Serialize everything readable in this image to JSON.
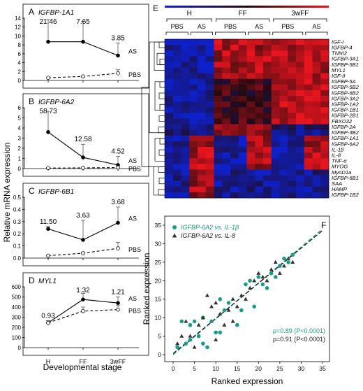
{
  "y_axis_shared_label": "Relative mRNA expression",
  "x_axis_shared_label": "Developmental stage",
  "chart_data": [
    {
      "panel": "A",
      "type": "line",
      "title": "IGFBP-1A1",
      "categories": [
        "H",
        "FF",
        "3wFF"
      ],
      "ylim": [
        0,
        14
      ],
      "yticks": [
        "0",
        "2",
        "4",
        "6",
        "8",
        "10",
        "12",
        "14"
      ],
      "series": [
        {
          "name": "AS",
          "values": [
            8.7,
            8.7,
            5.6
          ],
          "errors": [
            5.0,
            4.6,
            2.8
          ],
          "line": "solid",
          "marker": "filled"
        },
        {
          "name": "PBS",
          "values": [
            0.6,
            0.9,
            1.6
          ],
          "errors": [
            0,
            0,
            0.8
          ],
          "line": "dashed",
          "marker": "open"
        }
      ],
      "fold_labels": [
        "21.46",
        "7.65",
        "3.85"
      ]
    },
    {
      "panel": "B",
      "type": "line",
      "title": "IGFBP-6A2",
      "categories": [
        "H",
        "FF",
        "3wFF"
      ],
      "ylim": [
        0,
        6
      ],
      "yticks": [
        "0",
        "1",
        "2",
        "3",
        "4",
        "5",
        "6"
      ],
      "series": [
        {
          "name": "AS",
          "values": [
            3.6,
            1.1,
            0.35
          ],
          "errors": [
            2.05,
            1.3,
            0.85
          ],
          "line": "solid",
          "marker": "filled"
        },
        {
          "name": "PBS",
          "values": [
            0.05,
            0.07,
            0.1
          ],
          "errors": [
            0,
            0,
            0
          ],
          "line": "dashed",
          "marker": "open"
        }
      ],
      "fold_labels": [
        "58.73",
        "12.58",
        "4.52"
      ]
    },
    {
      "panel": "C",
      "type": "line",
      "title": "IGFBP-6B1",
      "categories": [
        "H",
        "FF",
        "3wFF"
      ],
      "ylim": [
        0,
        0.5
      ],
      "yticks": [
        "0.0",
        "0.1",
        "0.2",
        "0.3",
        "0.4",
        "0.5"
      ],
      "series": [
        {
          "name": "AS",
          "values": [
            0.24,
            0.15,
            0.29
          ],
          "errors": [
            0.02,
            0.16,
            0.13
          ],
          "line": "solid",
          "marker": "filled"
        },
        {
          "name": "PBS",
          "values": [
            0.02,
            0.04,
            0.08
          ],
          "errors": [
            0,
            0.01,
            0.05
          ],
          "line": "dashed",
          "marker": "open"
        }
      ],
      "fold_labels": [
        "11.50",
        "3.63",
        "3.68"
      ]
    },
    {
      "panel": "D",
      "type": "line",
      "title": "MYL1",
      "categories": [
        "H",
        "FF",
        "3wFF"
      ],
      "ylim": [
        0,
        600
      ],
      "yticks": [
        "0",
        "100",
        "200",
        "300",
        "400",
        "500",
        "600"
      ],
      "series": [
        {
          "name": "AS",
          "values": [
            245,
            475,
            440
          ],
          "errors": [
            20,
            60,
            60
          ],
          "line": "solid",
          "marker": "filled"
        },
        {
          "name": "PBS",
          "values": [
            245,
            360,
            375
          ],
          "errors": [
            20,
            40,
            40
          ],
          "line": "dashed",
          "marker": "open"
        }
      ],
      "fold_labels": [
        "0.93",
        "1.32",
        "1.21"
      ]
    },
    {
      "panel": "E",
      "type": "heatmap",
      "groups": [
        "H",
        "FF",
        "3wFF"
      ],
      "subgroups": [
        "PBS",
        "AS",
        "PBS",
        "AS",
        "PBS",
        "AS"
      ],
      "columns": 20,
      "genes": [
        "IGF-I",
        "IGFBP-4",
        "TNNI2",
        "IGFBP-3A1",
        "IGFBP-5B1",
        "MYL1",
        "IGF-II",
        "IGFBP-5A",
        "IGFBP-5B2",
        "IGFBP-6B2",
        "IGFBP-3A2",
        "IGFBP-1A2",
        "IGFBP-1B1",
        "IGFBP-2B1",
        "FBXO32",
        "IGFBP-2A",
        "IGFBP-3B2",
        "IGFBP-1A1",
        "IGFBP-6A2",
        "IL-1β",
        "IL-8",
        "TNF-α",
        "MYOG",
        "MyoD1a",
        "IGFBP-6B1",
        "SAA",
        "HAMP",
        "IGFBP-1B2"
      ],
      "colors": {
        "low": "#1620c8",
        "high": "#e8141e",
        "mid": "#220a10"
      }
    },
    {
      "panel": "F",
      "type": "scatter",
      "xlabel": "Ranked expression",
      "ylabel": "Ranked expression",
      "xlim": [
        0,
        35
      ],
      "ylim": [
        0,
        35
      ],
      "xticks": [
        "0",
        "5",
        "10",
        "15",
        "20",
        "25",
        "30",
        "35"
      ],
      "yticks": [
        "0",
        "5",
        "10",
        "15",
        "20",
        "25",
        "30",
        "35"
      ],
      "series": [
        {
          "name": "IGFBP-6A2 vs. IL-1β",
          "marker": "circle",
          "color": "#1a9a8a",
          "points": [
            [
              1,
              2
            ],
            [
              2,
              9
            ],
            [
              3,
              3
            ],
            [
              4,
              4
            ],
            [
              4,
              8
            ],
            [
              5,
              9
            ],
            [
              6,
              5
            ],
            [
              7,
              3
            ],
            [
              7,
              10
            ],
            [
              8,
              2
            ],
            [
              9,
              9
            ],
            [
              10,
              6
            ],
            [
              11,
              15
            ],
            [
              11,
              6
            ],
            [
              12,
              12
            ],
            [
              13,
              14
            ],
            [
              15,
              8
            ],
            [
              16,
              12
            ],
            [
              17,
              19
            ],
            [
              18,
              20
            ],
            [
              19,
              13
            ],
            [
              20,
              21
            ],
            [
              21,
              19
            ],
            [
              22,
              18
            ],
            [
              23,
              22
            ],
            [
              24,
              21
            ],
            [
              25,
              24
            ],
            [
              26,
              26
            ],
            [
              27,
              25
            ],
            [
              28,
              27
            ]
          ]
        },
        {
          "name": "IGFBP-6A2 vs. IL-8",
          "marker": "triangle",
          "color": "#333333",
          "points": [
            [
              1,
              3
            ],
            [
              2,
              5
            ],
            [
              3,
              9
            ],
            [
              4,
              5
            ],
            [
              5,
              2
            ],
            [
              6,
              8
            ],
            [
              7,
              10
            ],
            [
              8,
              16
            ],
            [
              9,
              13
            ],
            [
              10,
              14
            ],
            [
              10,
              4
            ],
            [
              11,
              11
            ],
            [
              12,
              8
            ],
            [
              13,
              12
            ],
            [
              14,
              9
            ],
            [
              14,
              15
            ],
            [
              15,
              13
            ],
            [
              16,
              16
            ],
            [
              17,
              15
            ],
            [
              18,
              18
            ],
            [
              19,
              20
            ],
            [
              20,
              22
            ],
            [
              21,
              21
            ],
            [
              22,
              20
            ],
            [
              23,
              23
            ],
            [
              24,
              25
            ],
            [
              25,
              22
            ],
            [
              26,
              24
            ],
            [
              27,
              26
            ],
            [
              28,
              25
            ]
          ]
        }
      ],
      "fits": [
        {
          "color": "#1a9a8a",
          "line": "dashed",
          "slope": 0.97,
          "intercept": 0.0
        },
        {
          "color": "#222222",
          "line": "dashed",
          "slope": 0.95,
          "intercept": 0.3
        }
      ],
      "stats": [
        "ρ=0.89 (P<0.0001)",
        "ρ=0.91 (P<0.0001)"
      ],
      "stats_colors": [
        "#1a9a8a",
        "#222222"
      ]
    }
  ]
}
